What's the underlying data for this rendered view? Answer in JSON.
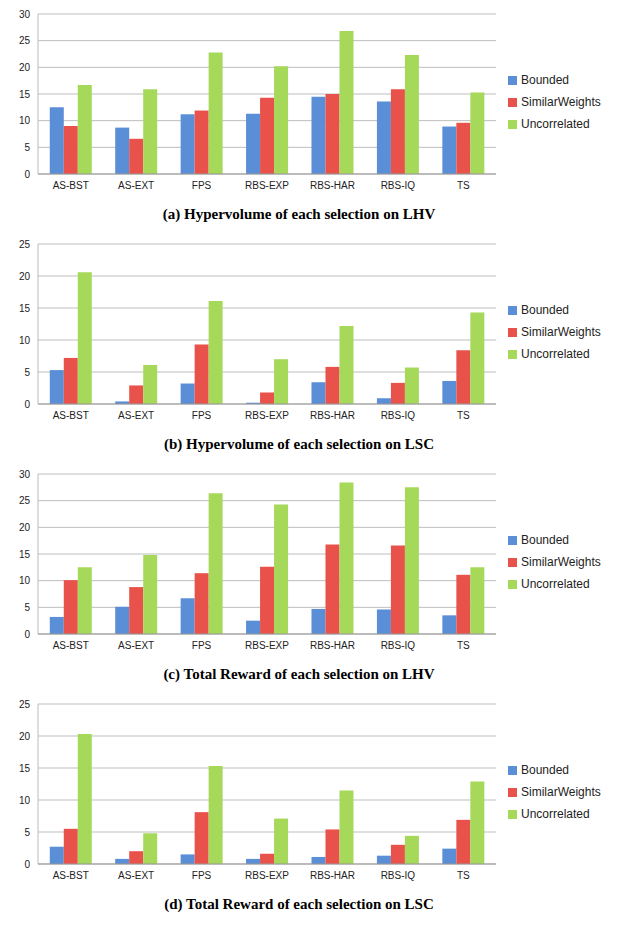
{
  "chart_data": [
    {
      "type": "bar",
      "title": "(a) Hypervolume of each selection on LHV",
      "categories": [
        "AS-BST",
        "AS-EXT",
        "FPS",
        "RBS-EXP",
        "RBS-HAR",
        "RBS-IQ",
        "TS"
      ],
      "series": [
        {
          "name": "Bounded",
          "color": "#5a8ed6",
          "values": [
            12.5,
            8.7,
            11.2,
            11.3,
            14.5,
            13.6,
            8.9
          ]
        },
        {
          "name": "SimilarWeights",
          "color": "#e8524a",
          "values": [
            9.0,
            6.6,
            11.9,
            14.3,
            15.0,
            15.9,
            9.6
          ]
        },
        {
          "name": "Uncorrelated",
          "color": "#a6d85a",
          "values": [
            16.7,
            15.9,
            22.8,
            20.2,
            26.8,
            22.3,
            15.3
          ]
        }
      ],
      "ylim": [
        0,
        30
      ],
      "yticks": [
        0,
        5,
        10,
        15,
        20,
        25,
        30
      ],
      "grid": true,
      "legend": "right"
    },
    {
      "type": "bar",
      "title": "(b) Hypervolume of each selection on LSC",
      "categories": [
        "AS-BST",
        "AS-EXT",
        "FPS",
        "RBS-EXP",
        "RBS-HAR",
        "RBS-IQ",
        "TS"
      ],
      "series": [
        {
          "name": "Bounded",
          "color": "#5a8ed6",
          "values": [
            5.3,
            0.4,
            3.2,
            0.2,
            3.4,
            0.9,
            3.6
          ]
        },
        {
          "name": "SimilarWeights",
          "color": "#e8524a",
          "values": [
            7.2,
            2.9,
            9.3,
            1.8,
            5.8,
            3.3,
            8.4
          ]
        },
        {
          "name": "Uncorrelated",
          "color": "#a6d85a",
          "values": [
            20.6,
            6.1,
            16.1,
            7.0,
            12.2,
            5.7,
            14.3
          ]
        }
      ],
      "ylim": [
        0,
        25
      ],
      "yticks": [
        0,
        5,
        10,
        15,
        20,
        25
      ],
      "grid": true,
      "legend": "right"
    },
    {
      "type": "bar",
      "title": "(c) Total Reward of each selection on LHV",
      "categories": [
        "AS-BST",
        "AS-EXT",
        "FPS",
        "RBS-EXP",
        "RBS-HAR",
        "RBS-IQ",
        "TS"
      ],
      "series": [
        {
          "name": "Bounded",
          "color": "#5a8ed6",
          "values": [
            3.2,
            5.1,
            6.7,
            2.5,
            4.7,
            4.6,
            3.5
          ]
        },
        {
          "name": "SimilarWeights",
          "color": "#e8524a",
          "values": [
            10.1,
            8.8,
            11.4,
            12.6,
            16.8,
            16.6,
            11.1
          ]
        },
        {
          "name": "Uncorrelated",
          "color": "#a6d85a",
          "values": [
            12.5,
            14.8,
            26.4,
            24.3,
            28.4,
            27.5,
            12.5
          ]
        }
      ],
      "ylim": [
        0,
        30
      ],
      "yticks": [
        0,
        5,
        10,
        15,
        20,
        25,
        30
      ],
      "grid": true,
      "legend": "right"
    },
    {
      "type": "bar",
      "title": "(d) Total Reward of each selection on LSC",
      "categories": [
        "AS-BST",
        "AS-EXT",
        "FPS",
        "RBS-EXP",
        "RBS-HAR",
        "RBS-IQ",
        "TS"
      ],
      "series": [
        {
          "name": "Bounded",
          "color": "#5a8ed6",
          "values": [
            2.7,
            0.8,
            1.5,
            0.8,
            1.1,
            1.3,
            2.4
          ]
        },
        {
          "name": "SimilarWeights",
          "color": "#e8524a",
          "values": [
            5.5,
            2.0,
            8.1,
            1.6,
            5.4,
            3.0,
            6.9
          ]
        },
        {
          "name": "Uncorrelated",
          "color": "#a6d85a",
          "values": [
            20.3,
            4.8,
            15.3,
            7.1,
            11.5,
            4.4,
            12.9
          ]
        }
      ],
      "ylim": [
        0,
        25
      ],
      "yticks": [
        0,
        5,
        10,
        15,
        20,
        25
      ],
      "grid": true,
      "legend": "right"
    }
  ]
}
